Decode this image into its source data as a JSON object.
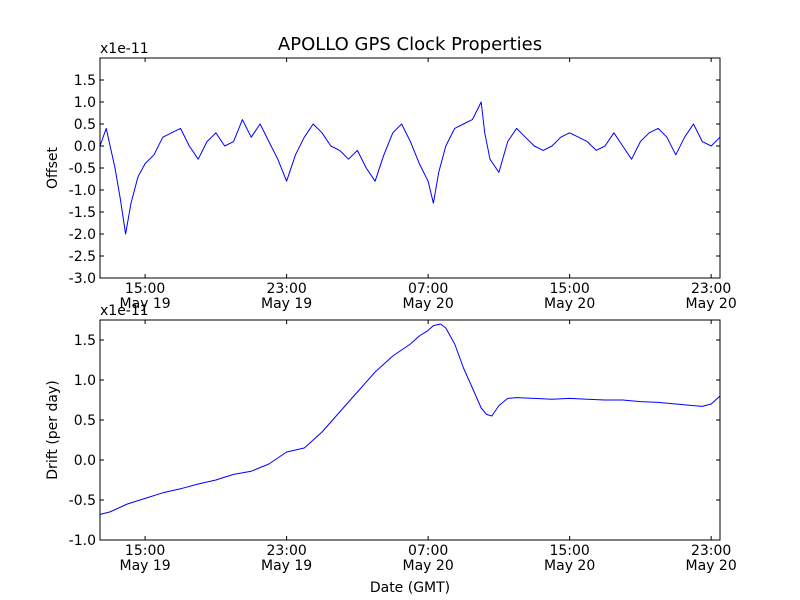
{
  "chart_data": {
    "title": "APOLLO GPS Clock Properties",
    "xlabel": "Date (GMT)",
    "x_ticks": [
      {
        "time": "15:00",
        "date": "May 19",
        "hours_since_0000_may19": 15
      },
      {
        "time": "23:00",
        "date": "May 19",
        "hours_since_0000_may19": 23
      },
      {
        "time": "07:00",
        "date": "May 20",
        "hours_since_0000_may19": 31
      },
      {
        "time": "15:00",
        "date": "May 20",
        "hours_since_0000_may19": 39
      },
      {
        "time": "23:00",
        "date": "May 20",
        "hours_since_0000_may19": 47
      }
    ],
    "x_range_hours": [
      12.45,
      47.5
    ],
    "line_color": "#0000ff",
    "panels": [
      {
        "type": "line",
        "ylabel": "Offset",
        "scale_label": "x1e-11",
        "ylim": [
          -3.0,
          2.0
        ],
        "y_ticks": [
          "-3.0",
          "-2.5",
          "-2.0",
          "-1.5",
          "-1.0",
          "-0.5",
          "0.0",
          "0.5",
          "1.0",
          "1.5"
        ],
        "y_tick_values": [
          -3.0,
          -2.5,
          -2.0,
          -1.5,
          -1.0,
          -0.5,
          0.0,
          0.5,
          1.0,
          1.5
        ],
        "series": [
          {
            "x": [
              12.45,
              12.8,
              13.3,
              13.6,
              13.9,
              14.2,
              14.6,
              15.0,
              15.5,
              16.0,
              16.5,
              17.0,
              17.5,
              18.0,
              18.5,
              19.0,
              19.5,
              20.0,
              20.5,
              21.0,
              21.5,
              22.0,
              22.5,
              23.0,
              23.5,
              24.0,
              24.5,
              25.0,
              25.5,
              26.0,
              26.5,
              27.0,
              27.5,
              28.0,
              28.5,
              29.0,
              29.5,
              30.0,
              30.5,
              31.0,
              31.3,
              31.6,
              32.0,
              32.5,
              33.0,
              33.5,
              34.0,
              34.2,
              34.5,
              35.0,
              35.5,
              36.0,
              36.5,
              37.0,
              37.5,
              38.0,
              38.5,
              39.0,
              39.5,
              40.0,
              40.5,
              41.0,
              41.5,
              42.0,
              42.5,
              43.0,
              43.5,
              44.0,
              44.5,
              45.0,
              45.5,
              46.0,
              46.5,
              47.0,
              47.5
            ],
            "values": [
              0.0,
              0.4,
              -0.5,
              -1.2,
              -2.0,
              -1.3,
              -0.7,
              -0.4,
              -0.2,
              0.2,
              0.3,
              0.4,
              0.0,
              -0.3,
              0.1,
              0.3,
              0.0,
              0.1,
              0.6,
              0.2,
              0.5,
              0.1,
              -0.3,
              -0.8,
              -0.2,
              0.2,
              0.5,
              0.3,
              0.0,
              -0.1,
              -0.3,
              -0.1,
              -0.5,
              -0.8,
              -0.2,
              0.3,
              0.5,
              0.1,
              -0.4,
              -0.8,
              -1.3,
              -0.6,
              0.0,
              0.4,
              0.5,
              0.6,
              1.0,
              0.3,
              -0.3,
              -0.6,
              0.1,
              0.4,
              0.2,
              0.0,
              -0.1,
              0.0,
              0.2,
              0.3,
              0.2,
              0.1,
              -0.1,
              0.0,
              0.3,
              0.0,
              -0.3,
              0.1,
              0.3,
              0.4,
              0.2,
              -0.2,
              0.2,
              0.5,
              0.1,
              0.0,
              0.2
            ]
          }
        ]
      },
      {
        "type": "line",
        "ylabel": "Drift (per day)",
        "scale_label": "x1e-11",
        "ylim": [
          -1.0,
          1.75
        ],
        "y_ticks": [
          "-1.0",
          "-0.5",
          "0.0",
          "0.5",
          "1.0",
          "1.5"
        ],
        "y_tick_values": [
          -1.0,
          -0.5,
          0.0,
          0.5,
          1.0,
          1.5
        ],
        "series": [
          {
            "x": [
              12.45,
              13.0,
              14.0,
              15.0,
              16.0,
              17.0,
              18.0,
              19.0,
              20.0,
              21.0,
              22.0,
              23.0,
              24.0,
              25.0,
              26.0,
              27.0,
              28.0,
              29.0,
              30.0,
              30.5,
              31.0,
              31.3,
              31.7,
              32.0,
              32.5,
              33.0,
              33.5,
              34.0,
              34.3,
              34.6,
              35.0,
              35.5,
              36.0,
              37.0,
              38.0,
              39.0,
              40.0,
              41.0,
              42.0,
              43.0,
              44.0,
              45.0,
              46.0,
              46.5,
              47.0,
              47.5
            ],
            "values": [
              -0.68,
              -0.65,
              -0.55,
              -0.48,
              -0.41,
              -0.36,
              -0.3,
              -0.25,
              -0.18,
              -0.14,
              -0.05,
              0.1,
              0.15,
              0.35,
              0.6,
              0.85,
              1.1,
              1.3,
              1.45,
              1.55,
              1.62,
              1.68,
              1.7,
              1.65,
              1.45,
              1.15,
              0.9,
              0.65,
              0.57,
              0.55,
              0.68,
              0.77,
              0.78,
              0.77,
              0.76,
              0.77,
              0.76,
              0.75,
              0.75,
              0.73,
              0.72,
              0.7,
              0.68,
              0.67,
              0.7,
              0.8
            ]
          }
        ]
      }
    ]
  }
}
